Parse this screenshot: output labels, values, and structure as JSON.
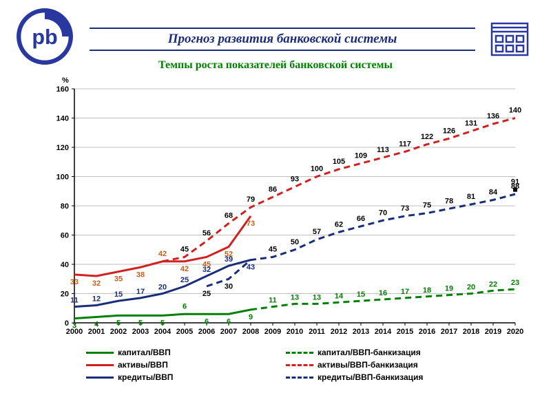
{
  "header": {
    "title": "Прогноз развития банковской системы",
    "subtitle": "Темпы роста показателей банковской системы",
    "y_axis_label": "%"
  },
  "chart": {
    "type": "line",
    "background_color": "#ffffff",
    "grid_color": "#bfbfbf",
    "font_family": "Arial",
    "label_fontsize": 11,
    "xlim": [
      2000,
      2020
    ],
    "ylim": [
      0,
      160
    ],
    "ytick_step": 20,
    "yticks": [
      0,
      20,
      40,
      60,
      80,
      100,
      120,
      140,
      160
    ],
    "x_categories": [
      "2000",
      "2001",
      "2002",
      "2003",
      "2004",
      "2005",
      "2006",
      "2007",
      "2008",
      "2009",
      "2010",
      "2011",
      "2012",
      "2013",
      "2014",
      "2015",
      "2016",
      "2017",
      "2018",
      "2019",
      "2020"
    ],
    "series": [
      {
        "name": "капитал/ВВП",
        "color": "#008000",
        "dash": "solid",
        "width": 3,
        "label_color": "#008000",
        "data_x": [
          2000,
          2001,
          2002,
          2003,
          2004,
          2005,
          2006,
          2007,
          2008
        ],
        "data_y": [
          3,
          4,
          5,
          5,
          5,
          6,
          6,
          6,
          9
        ],
        "labels": [
          "3",
          "4",
          "5",
          "5",
          "5",
          "6",
          "6",
          "6",
          "9"
        ],
        "label_dy": [
          14,
          14,
          14,
          14,
          14,
          -8,
          14,
          14,
          14
        ]
      },
      {
        "name": "капитал/ВВП-банкизация",
        "color": "#008000",
        "dash": "dashed",
        "width": 3,
        "label_color": "#008000",
        "data_x": [
          2008,
          2009,
          2010,
          2011,
          2012,
          2013,
          2014,
          2015,
          2016,
          2017,
          2018,
          2019,
          2020
        ],
        "data_y": [
          9,
          11,
          13,
          13,
          14,
          15,
          16,
          17,
          18,
          19,
          20,
          22,
          23
        ],
        "labels": [
          "",
          "11",
          "13",
          "13",
          "14",
          "15",
          "16",
          "17",
          "18",
          "19",
          "20",
          "22",
          "23"
        ],
        "label_dy": [
          0,
          -6,
          -6,
          -6,
          -6,
          -6,
          -6,
          -6,
          -6,
          -6,
          -6,
          -6,
          -6
        ]
      },
      {
        "name": "активы/ВВП",
        "color": "#d02020",
        "dash": "solid",
        "width": 3,
        "label_color": "#c06020",
        "data_x": [
          2000,
          2001,
          2002,
          2003,
          2004,
          2005,
          2006,
          2007,
          2008
        ],
        "data_y": [
          33,
          32,
          35,
          38,
          42,
          42,
          45,
          52,
          73
        ],
        "labels": [
          "33",
          "32",
          "35",
          "38",
          "42",
          "42",
          "45",
          "52",
          "73"
        ],
        "label_dy": [
          14,
          14,
          14,
          14,
          -8,
          14,
          14,
          14,
          14
        ]
      },
      {
        "name": "активы/ВВП-банкизация",
        "color": "#d02020",
        "dash": "dashed",
        "width": 3,
        "label_color": "#000000",
        "data_x": [
          2004,
          2005,
          2006,
          2007,
          2008,
          2009,
          2010,
          2011,
          2012,
          2013,
          2014,
          2015,
          2016,
          2017,
          2018,
          2019,
          2020
        ],
        "data_y": [
          42,
          45,
          56,
          68,
          79,
          86,
          93,
          100,
          105,
          109,
          113,
          117,
          122,
          126,
          131,
          136,
          140
        ],
        "labels": [
          "",
          "45",
          "56",
          "68",
          "79",
          "86",
          "93",
          "100",
          "105",
          "109",
          "113",
          "117",
          "122",
          "126",
          "131",
          "136",
          "140"
        ],
        "label_dy": [
          0,
          -8,
          -8,
          -8,
          -8,
          -8,
          -8,
          -8,
          -8,
          -8,
          -8,
          -8,
          -8,
          -8,
          -8,
          -8,
          -8
        ]
      },
      {
        "name": "кредиты/ВВП",
        "color": "#1a2d7a",
        "dash": "solid",
        "width": 3,
        "label_color": "#1a2d7a",
        "data_x": [
          2000,
          2001,
          2002,
          2003,
          2004,
          2005,
          2006,
          2007,
          2008
        ],
        "data_y": [
          11,
          12,
          15,
          17,
          20,
          25,
          32,
          39,
          43
        ],
        "labels": [
          "11",
          "12",
          "15",
          "17",
          "20",
          "25",
          "32",
          "39",
          "43"
        ],
        "label_dy": [
          -6,
          -6,
          -6,
          -6,
          -6,
          -6,
          -6,
          -6,
          14
        ]
      },
      {
        "name": "кредиты/ВВП-банкизация",
        "color": "#1a2d7a",
        "dash": "dashed",
        "width": 3,
        "label_color": "#000000",
        "data_x": [
          2006,
          2007,
          2008,
          2009,
          2010,
          2011,
          2012,
          2013,
          2014,
          2015,
          2016,
          2017,
          2018,
          2019,
          2020
        ],
        "data_y": [
          25,
          30,
          43,
          45,
          50,
          57,
          62,
          66,
          70,
          73,
          75,
          78,
          81,
          84,
          88
        ],
        "labels": [
          "25",
          "30",
          "",
          "45",
          "50",
          "57",
          "62",
          "66",
          "70",
          "73",
          "75",
          "78",
          "81",
          "84",
          "88"
        ],
        "label_dy": [
          14,
          14,
          0,
          -8,
          -8,
          -8,
          -8,
          -8,
          -8,
          -8,
          -8,
          -8,
          -8,
          -8,
          -8
        ]
      },
      {
        "name": "endpoint91",
        "color": "#000000",
        "dash": "none",
        "width": 0,
        "label_color": "#000000",
        "data_x": [
          2020
        ],
        "data_y": [
          91
        ],
        "labels": [
          "91"
        ],
        "label_dy": [
          -8
        ],
        "hide_in_legend": true,
        "marker_only": true
      }
    ],
    "legend": [
      {
        "label": "капитал/ВВП",
        "color": "#008000",
        "dash": "solid"
      },
      {
        "label": "капитал/ВВП-банкизация",
        "color": "#008000",
        "dash": "dashed"
      },
      {
        "label": "активы/ВВП",
        "color": "#d02020",
        "dash": "solid"
      },
      {
        "label": "активы/ВВП-банкизация",
        "color": "#d02020",
        "dash": "dashed"
      },
      {
        "label": "кредиты/ВВП",
        "color": "#1a2d7a",
        "dash": "solid"
      },
      {
        "label": "кредиты/ВВП-банкизация",
        "color": "#1a2d7a",
        "dash": "dashed"
      }
    ]
  },
  "colors": {
    "title_border": "#1a2d7a",
    "title_text": "#1a2d7a",
    "subtitle_text": "#008000",
    "logo_stroke": "#2838a0",
    "building_stroke": "#2838a0"
  }
}
